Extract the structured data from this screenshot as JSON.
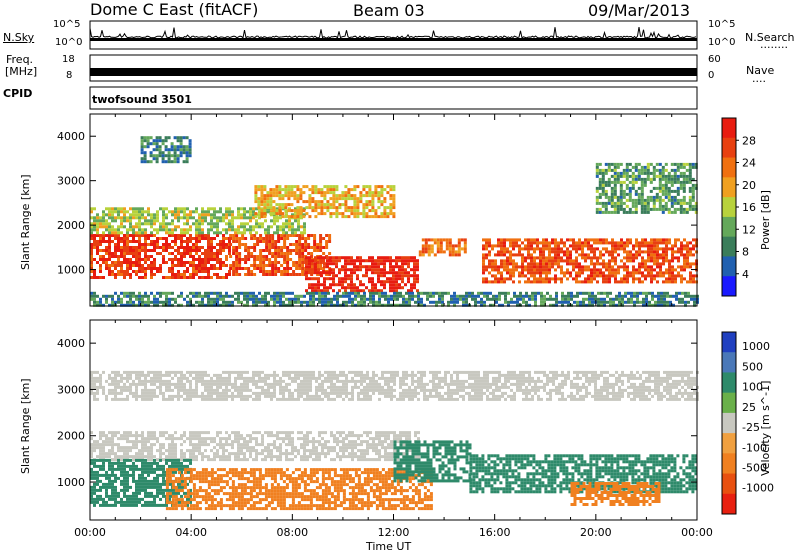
{
  "header": {
    "station": "Dome C East (fitACF)",
    "beam": "Beam 03",
    "date": "09/Mar/2013"
  },
  "top_strip": {
    "left_label": "N.Sky",
    "left_ticks": [
      "10^5",
      "10^0"
    ],
    "right_ticks": [
      "10^5",
      "10^0"
    ],
    "right_label": "N.Search",
    "right_dots": "........"
  },
  "freq_strip": {
    "left_label_1": "Freq.",
    "left_label_2": "[MHz]",
    "left_ticks": [
      "18",
      "8"
    ],
    "right_ticks": [
      "60",
      "0"
    ],
    "right_label": "Nave",
    "right_dots": "....",
    "cpid_label": "CPID",
    "cpid_value": "twofsound 3501"
  },
  "colors": {
    "axis": "#000000",
    "power_scale": [
      "#1a1aff",
      "#2060b0",
      "#3a7d5a",
      "#64a85a",
      "#b8d23c",
      "#f0a020",
      "#f07010",
      "#e84010",
      "#e81c10"
    ],
    "velocity_scale": [
      "#2040c0",
      "#4a78b8",
      "#2e8a6a",
      "#6ab04a",
      "#c8c8c0",
      "#f0a040",
      "#f08020",
      "#e85010",
      "#e82010"
    ],
    "ground_scatter": "#c8c8c0"
  },
  "chart_data": [
    {
      "type": "heatmap",
      "title": "Power",
      "xlabel": "",
      "ylabel": "Slant Range [km]",
      "xlim": [
        "00:00",
        "00:00"
      ],
      "x_ticks": [
        "00:00",
        "04:00",
        "08:00",
        "12:00",
        "16:00",
        "20:00",
        "00:00"
      ],
      "ylim": [
        180,
        4500
      ],
      "y_ticks": [
        1000,
        2000,
        3000,
        4000
      ],
      "colorbar": {
        "label": "Power [dB]",
        "ticks": [
          4,
          8,
          12,
          16,
          20,
          24,
          28
        ],
        "range": [
          0,
          30
        ]
      },
      "regions": [
        {
          "t0": 0.0,
          "t1": 5.5,
          "r0": 800,
          "r1": 1800,
          "value": 26
        },
        {
          "t0": 5.5,
          "t1": 9.5,
          "r0": 900,
          "r1": 1800,
          "value": 24
        },
        {
          "t0": 8.5,
          "t1": 13.0,
          "r0": 500,
          "r1": 1300,
          "value": 28
        },
        {
          "t0": 13.0,
          "t1": 14.8,
          "r0": 1300,
          "r1": 1700,
          "value": 22
        },
        {
          "t0": 15.5,
          "t1": 24.0,
          "r0": 700,
          "r1": 1700,
          "value": 24
        },
        {
          "t0": 0.0,
          "t1": 24.0,
          "r0": 200,
          "r1": 500,
          "value": 8
        },
        {
          "t0": 0.0,
          "t1": 8.5,
          "r0": 1800,
          "r1": 2400,
          "value": 14
        },
        {
          "t0": 6.5,
          "t1": 12.0,
          "r0": 2200,
          "r1": 2900,
          "value": 18
        },
        {
          "t0": 2.0,
          "t1": 4.0,
          "r0": 3400,
          "r1": 4000,
          "value": 8
        },
        {
          "t0": 20.0,
          "t1": 24.0,
          "r0": 2300,
          "r1": 3400,
          "value": 10
        }
      ]
    },
    {
      "type": "heatmap",
      "title": "Velocity",
      "xlabel": "Time UT",
      "ylabel": "Slant Range [km]",
      "xlim": [
        "00:00",
        "00:00"
      ],
      "x_ticks": [
        "00:00",
        "04:00",
        "08:00",
        "12:00",
        "16:00",
        "20:00",
        "00:00"
      ],
      "ylim": [
        180,
        4500
      ],
      "y_ticks": [
        1000,
        2000,
        3000,
        4000
      ],
      "colorbar": {
        "label": "Velocity [m s^-1]",
        "ticks": [
          "1000",
          "500",
          "100",
          "25",
          "-25",
          "-100",
          "-500",
          "-1000"
        ]
      },
      "regions": [
        {
          "t0": 0.0,
          "t1": 13.0,
          "r0": 1500,
          "r1": 2100,
          "value": "ground"
        },
        {
          "t0": 0.0,
          "t1": 4.0,
          "r0": 500,
          "r1": 1500,
          "value": 150
        },
        {
          "t0": 3.0,
          "t1": 13.5,
          "r0": 400,
          "r1": 1300,
          "value": -200
        },
        {
          "t0": 12.0,
          "t1": 15.0,
          "r0": 1000,
          "r1": 1900,
          "value": 300
        },
        {
          "t0": 15.0,
          "t1": 24.0,
          "r0": 800,
          "r1": 1600,
          "value": 200
        },
        {
          "t0": 19.0,
          "t1": 22.5,
          "r0": 500,
          "r1": 1000,
          "value": -300
        },
        {
          "t0": 0.0,
          "t1": 24.0,
          "r0": 2800,
          "r1": 3400,
          "value": "ground"
        }
      ]
    }
  ]
}
